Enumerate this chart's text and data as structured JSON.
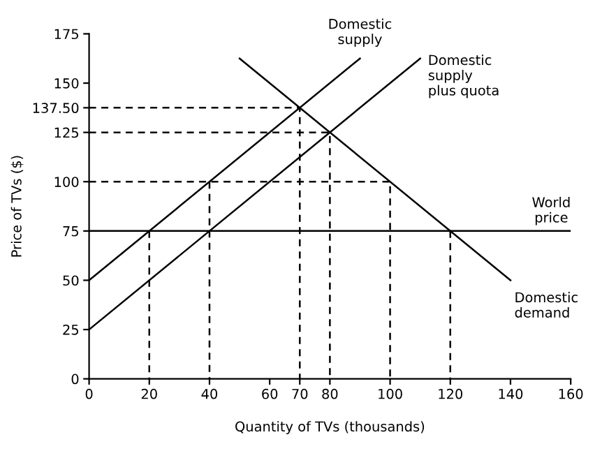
{
  "chart_data": {
    "type": "line",
    "xlabel": "Quantity of TVs (thousands)",
    "ylabel": "Price of TVs ($)",
    "xlim": [
      0,
      160
    ],
    "ylim": [
      0,
      175
    ],
    "xticks": [
      0,
      20,
      40,
      60,
      70,
      80,
      100,
      120,
      140,
      160
    ],
    "yticks": [
      0,
      25,
      50,
      75,
      100,
      125,
      {
        "value": 137.5,
        "label": "137.50"
      },
      150,
      175
    ],
    "grid": false,
    "marker": "none",
    "ref_lines": [
      {
        "axis": "y",
        "value": 75,
        "label": "World price",
        "color": "#000000",
        "line_style": "solid"
      }
    ],
    "series": [
      {
        "name": "Domestic supply",
        "color": "#000000",
        "line_style": "solid",
        "x": [
          0,
          90
        ],
        "values": [
          50,
          162.5
        ]
      },
      {
        "name": "Domestic supply plus quota",
        "color": "#000000",
        "line_style": "solid",
        "x": [
          0,
          110
        ],
        "values": [
          25,
          162.5
        ]
      },
      {
        "name": "Domestic demand",
        "color": "#000000",
        "line_style": "solid",
        "x": [
          50,
          140
        ],
        "values": [
          162.5,
          50
        ]
      },
      {
        "color": "#000000",
        "line_style": "dashed",
        "x": [
          0,
          70,
          70
        ],
        "values": [
          137.5,
          137.5,
          0
        ]
      },
      {
        "color": "#000000",
        "line_style": "dashed",
        "x": [
          0,
          80,
          80
        ],
        "values": [
          125,
          125,
          0
        ]
      },
      {
        "color": "#000000",
        "line_style": "dashed",
        "x": [
          0,
          100,
          100
        ],
        "values": [
          100,
          100,
          0
        ]
      },
      {
        "color": "#000000",
        "line_style": "dashed",
        "x": [
          20,
          20
        ],
        "values": [
          75,
          0
        ]
      },
      {
        "color": "#000000",
        "line_style": "dashed",
        "x": [
          40,
          40
        ],
        "values": [
          100,
          0
        ]
      },
      {
        "color": "#000000",
        "line_style": "dashed",
        "x": [
          120,
          120
        ],
        "values": [
          75,
          0
        ]
      }
    ]
  }
}
